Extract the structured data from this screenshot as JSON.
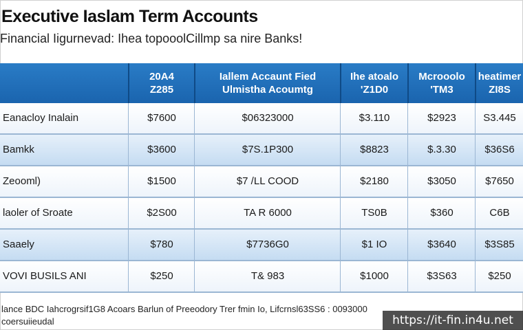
{
  "title": "Executive Iaslam Term Accounts",
  "subtitle": "Financial Iigurnevad: Ihea topooolCillmp sa nire Banks!",
  "headers": [
    {
      "l1": "",
      "l2": ""
    },
    {
      "l1": "20A4",
      "l2": "Z285"
    },
    {
      "l1": "Iallem Accaunt Fied",
      "l2": "Ulmistha Acoumtg"
    },
    {
      "l1": "Ihe atoalo",
      "l2": "'Z1D0"
    },
    {
      "l1": "Mcrooolo",
      "l2": "'TM3"
    },
    {
      "l1": "heatimer",
      "l2": "ZI8S"
    }
  ],
  "rows": [
    {
      "label": "Eanacloy Inalain",
      "c1": "$7600",
      "c2": "$06323000",
      "c3": "$3.110",
      "c4": "$2923",
      "c5": "S3.445"
    },
    {
      "label": "Bamkk",
      "c1": "$3600",
      "c2": "$7S.1P300",
      "c3": "$8823",
      "c4": "$.3.30",
      "c5": "$36S6"
    },
    {
      "label": "Zeooml)",
      "c1": "$1500",
      "c2": "$7 /LL COOD",
      "c3": "$2180",
      "c4": "$3050",
      "c5": "$7650"
    },
    {
      "label": "laoler of Sroate",
      "c1": "$2S00",
      "c2": "TA R 6000",
      "c3": "TS0B",
      "c4": "$360",
      "c5": "C6B"
    },
    {
      "label": "Saaely",
      "c1": "$780",
      "c2": "$7736G0",
      "c3": "$1 IO",
      "c4": "$3640",
      "c5": "$3S85"
    },
    {
      "label": "VOVI BUSILS ANI",
      "c1": "$250",
      "c2": "T& 983",
      "c3": "$1000",
      "c4": "$3S63",
      "c5": "$250"
    }
  ],
  "footer": {
    "line1": "lance BDC Iahcrogrsif1G8 Acoars Barlun of Preeodory Trer fmin Io, Lifcrnsl63SS6 : 0093000",
    "line2": "coersuiieudal"
  },
  "watermark": "https://it-fin.in4u.net",
  "colors": {
    "header": "#1f6fba",
    "row_alt": "#c5dcf2",
    "grid": "#9bb6d3"
  }
}
